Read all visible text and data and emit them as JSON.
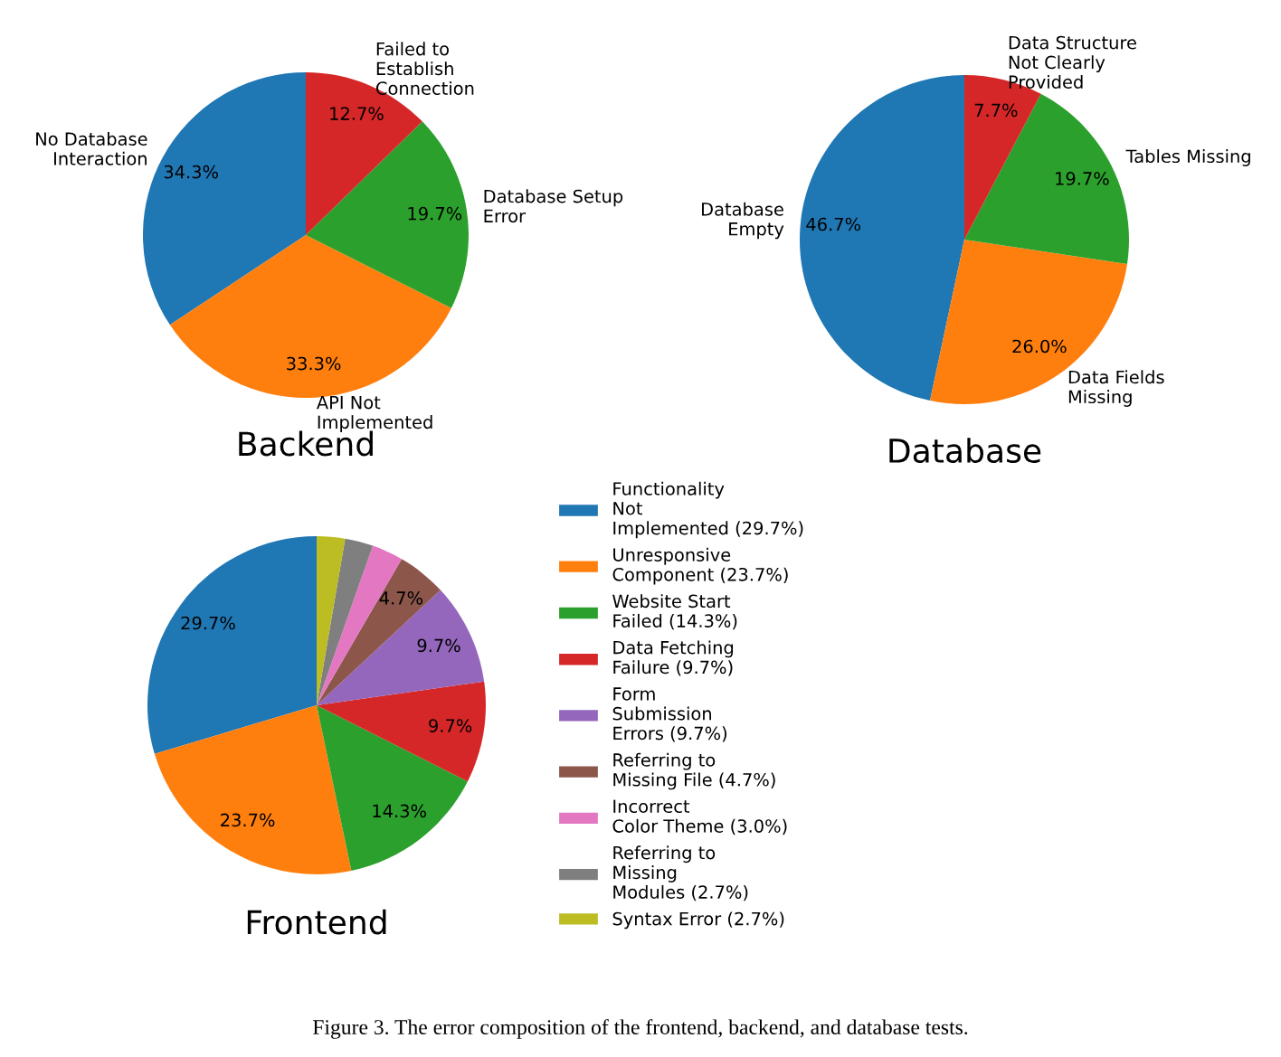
{
  "chart_data": [
    {
      "type": "pie",
      "title": "Backend",
      "categories": [
        "No Database\nInteraction",
        "API Not\nImplemented",
        "Database Setup\nError",
        "Failed to\nEstablish\nConnection"
      ],
      "values": [
        34.3,
        33.3,
        19.7,
        12.7
      ],
      "colors": [
        "#1f77b4",
        "#ff7f0e",
        "#2ca02c",
        "#d62728"
      ],
      "value_labels": [
        "34.3%",
        "33.3%",
        "19.7%",
        "12.7%"
      ]
    },
    {
      "type": "pie",
      "title": "Database",
      "categories": [
        "Database\nEmpty",
        "Data Fields\nMissing",
        "Tables Missing",
        "Data Structure\nNot Clearly\nProvided"
      ],
      "values": [
        46.7,
        26.0,
        19.7,
        7.7
      ],
      "colors": [
        "#1f77b4",
        "#ff7f0e",
        "#2ca02c",
        "#d62728"
      ],
      "value_labels": [
        "46.7%",
        "26.0%",
        "19.7%",
        "7.7%"
      ]
    },
    {
      "type": "pie",
      "title": "Frontend",
      "categories": [
        "Functionality\nNot\nImplemented (29.7%)",
        "Unresponsive\nComponent (23.7%)",
        "Website Start\nFailed (14.3%)",
        "Data Fetching\nFailure (9.7%)",
        "Form\nSubmission\nErrors (9.7%)",
        "Referring to\nMissing File (4.7%)",
        "Incorrect\nColor Theme (3.0%)",
        "Referring to\nMissing\nModules (2.7%)",
        "Syntax Error (2.7%)"
      ],
      "values": [
        29.7,
        23.7,
        14.3,
        9.7,
        9.7,
        4.7,
        3.0,
        2.7,
        2.7
      ],
      "colors": [
        "#1f77b4",
        "#ff7f0e",
        "#2ca02c",
        "#d62728",
        "#9467bd",
        "#8c564b",
        "#e377c2",
        "#7f7f7f",
        "#bcbd22"
      ],
      "value_labels": [
        "29.7%",
        "23.7%",
        "14.3%",
        "9.7%",
        "9.7%",
        "4.7%",
        null,
        null,
        null
      ],
      "legend": "right",
      "annotations": [
        "Figure 3. The error composition of the frontend, backend, and database tests."
      ]
    }
  ]
}
